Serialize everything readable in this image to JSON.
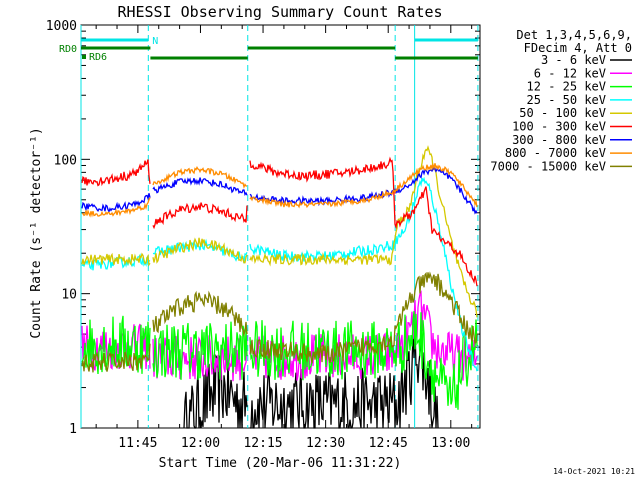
{
  "chart_data": {
    "type": "line",
    "title": "RHESSI Observing Summary Count Rates",
    "xlabel": "Start Time (20-Mar-06 11:31:22)",
    "ylabel": "Count Rate (s⁻¹ detector⁻¹)",
    "y_scale": "log",
    "ylim": [
      1,
      1000
    ],
    "y_ticks": [
      "1",
      "10",
      "100",
      "1000"
    ],
    "xlim": [
      "11:31:22",
      "13:07:00"
    ],
    "x_ticks": [
      "11:45",
      "12:00",
      "12:15",
      "12:30",
      "12:45",
      "13:00"
    ],
    "legend_placement": "right",
    "legend_header": [
      "Det 1,3,4,5,6,9,",
      "FDecim 4, Att 0"
    ],
    "timestamp": "14-Oct-2021 10:21",
    "flags": [
      {
        "label": "RD0",
        "color": "#008000"
      },
      {
        "label": "RD6",
        "color": "#008000"
      },
      {
        "label": "N",
        "color": "#00e5e5"
      }
    ],
    "vlines_solid": [
      "11:31:22",
      "12:51:20"
    ],
    "vlines_dashed": [
      "11:47:30",
      "12:11:20",
      "12:46:40",
      "13:06:30"
    ],
    "segments_cyan_bar": [
      [
        "11:31:22",
        "11:47:30"
      ],
      [
        "12:51:20",
        "13:06:30"
      ]
    ],
    "segments_green_bar": [
      [
        "11:31:22",
        "11:48:00"
      ],
      [
        "11:48:00",
        "12:11:20"
      ],
      [
        "12:11:20",
        "12:46:40"
      ],
      [
        "12:46:40",
        "13:06:30"
      ]
    ],
    "gaps": [
      [
        "11:48:00",
        "11:48:30"
      ],
      [
        "12:11:20",
        "12:11:40"
      ]
    ],
    "series": [
      {
        "name": "3 - 6 keV",
        "color": "#000000",
        "noise": 0.55,
        "points": [
          [
            "11:56:00",
            1
          ],
          [
            "12:00:00",
            1.5
          ],
          [
            "12:05:00",
            2
          ],
          [
            "12:10:00",
            1.5
          ],
          [
            "12:47:00",
            1.5
          ],
          [
            "12:50:00",
            2.5
          ],
          [
            "12:52:00",
            4
          ],
          [
            "12:55:00",
            2
          ],
          [
            "12:57:00",
            1
          ]
        ]
      },
      {
        "name": "6 - 12 keV",
        "color": "#ff00ff",
        "noise": 0.35,
        "points": [
          [
            "11:31:30",
            4
          ],
          [
            "11:47:30",
            4
          ],
          [
            "11:48:30",
            3.3
          ],
          [
            "12:11:00",
            3.3
          ],
          [
            "12:11:40",
            3.3
          ],
          [
            "12:46:00",
            3.5
          ],
          [
            "12:50:00",
            5
          ],
          [
            "12:53:00",
            7.5
          ],
          [
            "12:56:00",
            4
          ],
          [
            "13:00:00",
            3.5
          ],
          [
            "13:06:30",
            3.2
          ]
        ]
      },
      {
        "name": "12 - 25 keV",
        "color": "#00ff00",
        "noise": 0.45,
        "points": [
          [
            "11:31:30",
            4.2
          ],
          [
            "11:47:30",
            4.2
          ],
          [
            "11:48:30",
            3.8
          ],
          [
            "12:11:00",
            3.8
          ],
          [
            "12:11:40",
            3.8
          ],
          [
            "12:46:00",
            3.8
          ],
          [
            "12:50:00",
            4.5
          ],
          [
            "12:52:00",
            5.5
          ],
          [
            "12:55:00",
            3
          ],
          [
            "12:58:00",
            2
          ],
          [
            "13:00:00",
            1.5
          ],
          [
            "13:03:00",
            3
          ],
          [
            "13:06:30",
            4.5
          ]
        ]
      },
      {
        "name": "25 - 50 keV",
        "color": "#00ffff",
        "noise": 0.08,
        "points": [
          [
            "11:31:30",
            16
          ],
          [
            "11:40:00",
            17
          ],
          [
            "11:47:30",
            18
          ],
          [
            "11:48:30",
            20
          ],
          [
            "11:55:00",
            22
          ],
          [
            "12:00:00",
            23
          ],
          [
            "12:05:00",
            21
          ],
          [
            "12:11:00",
            18
          ],
          [
            "12:11:40",
            22
          ],
          [
            "12:20:00",
            19
          ],
          [
            "12:30:00",
            19
          ],
          [
            "12:40:00",
            21
          ],
          [
            "12:46:00",
            23
          ],
          [
            "12:49:00",
            30
          ],
          [
            "12:51:00",
            45
          ],
          [
            "12:53:00",
            72
          ],
          [
            "12:55:00",
            60
          ],
          [
            "12:58:00",
            25
          ],
          [
            "13:00:00",
            12
          ],
          [
            "13:03:00",
            5
          ],
          [
            "13:06:30",
            2.5
          ]
        ]
      },
      {
        "name": "50 - 100 keV",
        "color": "#d4c800",
        "noise": 0.08,
        "points": [
          [
            "11:31:30",
            18
          ],
          [
            "11:47:30",
            18
          ],
          [
            "11:48:30",
            18
          ],
          [
            "11:55:00",
            22
          ],
          [
            "12:00:00",
            24
          ],
          [
            "12:05:00",
            22
          ],
          [
            "12:11:00",
            18
          ],
          [
            "12:46:00",
            18
          ],
          [
            "12:47:00",
            32
          ],
          [
            "12:50:00",
            42
          ],
          [
            "12:52:00",
            75
          ],
          [
            "12:54:00",
            120
          ],
          [
            "12:55:30",
            100
          ],
          [
            "12:58:00",
            45
          ],
          [
            "13:00:00",
            25
          ],
          [
            "13:03:00",
            12
          ],
          [
            "13:06:30",
            7
          ]
        ]
      },
      {
        "name": "100 - 300 keV",
        "color": "#ff0000",
        "noise": 0.07,
        "points": [
          [
            "11:31:30",
            68
          ],
          [
            "11:38:00",
            70
          ],
          [
            "11:44:00",
            78
          ],
          [
            "11:47:30",
            95
          ],
          [
            "11:48:30",
            33
          ],
          [
            "11:55:00",
            42
          ],
          [
            "12:00:00",
            45
          ],
          [
            "12:06:00",
            40
          ],
          [
            "12:11:00",
            35
          ],
          [
            "12:11:40",
            95
          ],
          [
            "12:18:00",
            80
          ],
          [
            "12:25:00",
            75
          ],
          [
            "12:35:00",
            80
          ],
          [
            "12:42:00",
            88
          ],
          [
            "12:46:00",
            95
          ],
          [
            "12:46:40",
            33
          ],
          [
            "12:50:00",
            38
          ],
          [
            "12:52:00",
            45
          ],
          [
            "12:54:00",
            60
          ],
          [
            "12:55:30",
            30
          ],
          [
            "12:58:00",
            25
          ],
          [
            "13:02:00",
            20
          ],
          [
            "13:04:00",
            15
          ],
          [
            "13:06:30",
            12
          ]
        ]
      },
      {
        "name": "300 - 800 keV",
        "color": "#0000ff",
        "noise": 0.05,
        "points": [
          [
            "11:31:30",
            45
          ],
          [
            "11:38:00",
            43
          ],
          [
            "11:44:00",
            46
          ],
          [
            "11:47:30",
            52
          ],
          [
            "11:48:30",
            58
          ],
          [
            "11:55:00",
            68
          ],
          [
            "12:00:00",
            70
          ],
          [
            "12:05:00",
            65
          ],
          [
            "12:11:00",
            55
          ],
          [
            "12:11:40",
            53
          ],
          [
            "12:20:00",
            49
          ],
          [
            "12:30:00",
            49
          ],
          [
            "12:40:00",
            52
          ],
          [
            "12:46:00",
            57
          ],
          [
            "12:50:00",
            64
          ],
          [
            "12:53:00",
            78
          ],
          [
            "12:56:00",
            85
          ],
          [
            "13:00:00",
            72
          ],
          [
            "13:03:00",
            55
          ],
          [
            "13:06:30",
            38
          ]
        ]
      },
      {
        "name": "800 - 7000 keV",
        "color": "#ff8c00",
        "noise": 0.04,
        "points": [
          [
            "11:31:30",
            40
          ],
          [
            "11:38:00",
            39
          ],
          [
            "11:44:00",
            42
          ],
          [
            "11:47:30",
            46
          ],
          [
            "11:48:30",
            65
          ],
          [
            "11:55:00",
            80
          ],
          [
            "12:00:00",
            84
          ],
          [
            "12:05:00",
            78
          ],
          [
            "12:11:00",
            64
          ],
          [
            "12:11:40",
            52
          ],
          [
            "12:20:00",
            46
          ],
          [
            "12:30:00",
            46
          ],
          [
            "12:40:00",
            50
          ],
          [
            "12:46:00",
            57
          ],
          [
            "12:50:00",
            72
          ],
          [
            "12:53:00",
            85
          ],
          [
            "12:56:00",
            90
          ],
          [
            "13:00:00",
            80
          ],
          [
            "13:03:00",
            62
          ],
          [
            "13:06:30",
            45
          ]
        ]
      },
      {
        "name": "7000 - 15000 keV",
        "color": "#808000",
        "noise": 0.15,
        "points": [
          [
            "11:31:30",
            3
          ],
          [
            "11:47:30",
            3.2
          ],
          [
            "11:48:30",
            5.5
          ],
          [
            "11:55:00",
            8
          ],
          [
            "12:00:00",
            9
          ],
          [
            "12:05:00",
            8
          ],
          [
            "12:11:00",
            5.5
          ],
          [
            "12:11:40",
            4
          ],
          [
            "12:30:00",
            3.5
          ],
          [
            "12:46:00",
            4.5
          ],
          [
            "12:50:00",
            9
          ],
          [
            "12:53:00",
            12
          ],
          [
            "12:56:00",
            13
          ],
          [
            "13:00:00",
            9
          ],
          [
            "13:03:00",
            6
          ],
          [
            "13:06:30",
            4.5
          ]
        ]
      }
    ]
  }
}
